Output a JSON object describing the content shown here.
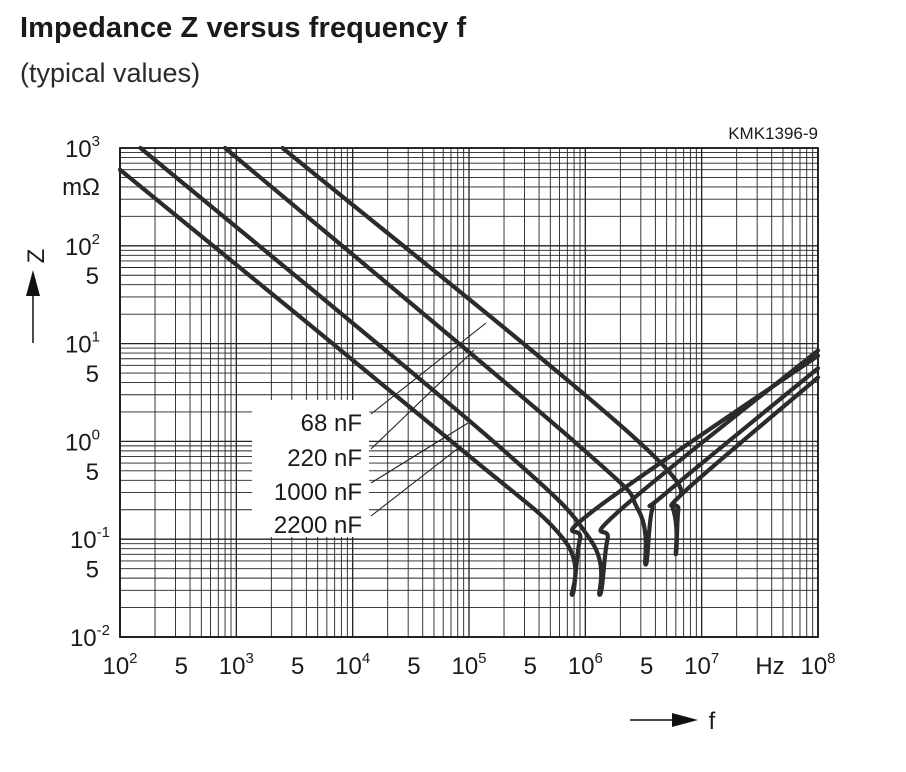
{
  "title": "Impedance Z versus frequency f",
  "subtitle": "(typical values)",
  "chart_data": {
    "type": "line",
    "reference_code": "KMK1396-9",
    "x_axis": {
      "label": "f",
      "unit": "Hz",
      "scale": "log",
      "range": [
        100,
        100000000
      ],
      "tick_labels": [
        {
          "value": 100,
          "base": "10",
          "exp": "2"
        },
        {
          "value": 500,
          "base": "5",
          "exp": ""
        },
        {
          "value": 1000,
          "base": "10",
          "exp": "3"
        },
        {
          "value": 5000,
          "base": "5",
          "exp": ""
        },
        {
          "value": 10000,
          "base": "10",
          "exp": "4"
        },
        {
          "value": 50000,
          "base": "5",
          "exp": ""
        },
        {
          "value": 100000,
          "base": "10",
          "exp": "5"
        },
        {
          "value": 500000,
          "base": "5",
          "exp": ""
        },
        {
          "value": 1000000,
          "base": "10",
          "exp": "6"
        },
        {
          "value": 5000000,
          "base": "5",
          "exp": ""
        },
        {
          "value": 10000000,
          "base": "10",
          "exp": "7"
        },
        {
          "value": 100000000,
          "base": "10",
          "exp": "8"
        }
      ]
    },
    "y_axis": {
      "label": "Z",
      "unit": "mΩ",
      "scale": "log",
      "range": [
        0.01,
        1000
      ],
      "tick_labels": [
        {
          "value": 1000,
          "base": "10",
          "exp": "3"
        },
        {
          "value": 100,
          "base": "10",
          "exp": "2"
        },
        {
          "value": 50,
          "base": "5",
          "exp": ""
        },
        {
          "value": 10,
          "base": "10",
          "exp": "1"
        },
        {
          "value": 5,
          "base": "5",
          "exp": ""
        },
        {
          "value": 1,
          "base": "10",
          "exp": "0"
        },
        {
          "value": 0.5,
          "base": "5",
          "exp": ""
        },
        {
          "value": 0.1,
          "base": "10",
          "exp": "-1"
        },
        {
          "value": 0.05,
          "base": "5",
          "exp": ""
        },
        {
          "value": 0.01,
          "base": "10",
          "exp": "-2"
        }
      ]
    },
    "grid": true,
    "legend_position": "center-left",
    "series": [
      {
        "name": "68 nF",
        "x": [
          2500,
          3000000,
          5700000,
          6000000,
          6300000,
          7000000,
          100000000
        ],
        "y": [
          1000,
          0.95,
          0.2,
          0.07,
          0.2,
          0.3,
          4.5
        ]
      },
      {
        "name": "220 nF",
        "x": [
          800,
          800000,
          2850000,
          3300000,
          3750000,
          5000000,
          100000000
        ],
        "y": [
          1000,
          1.0,
          0.2,
          0.055,
          0.2,
          0.3,
          5.6
        ]
      },
      {
        "name": "1000 nF",
        "x": [
          150,
          150000,
          1100000,
          1330000,
          1550000,
          2000000,
          100000000
        ],
        "y": [
          1000,
          1.08,
          0.1,
          0.027,
          0.1,
          0.2,
          8.5
        ]
      },
      {
        "name": "2200 nF",
        "x": [
          100,
          66000,
          650000,
          770000,
          900000,
          1200000,
          100000000
        ],
        "y": [
          600,
          1.07,
          0.1,
          0.027,
          0.1,
          0.2,
          7.5
        ]
      }
    ]
  }
}
